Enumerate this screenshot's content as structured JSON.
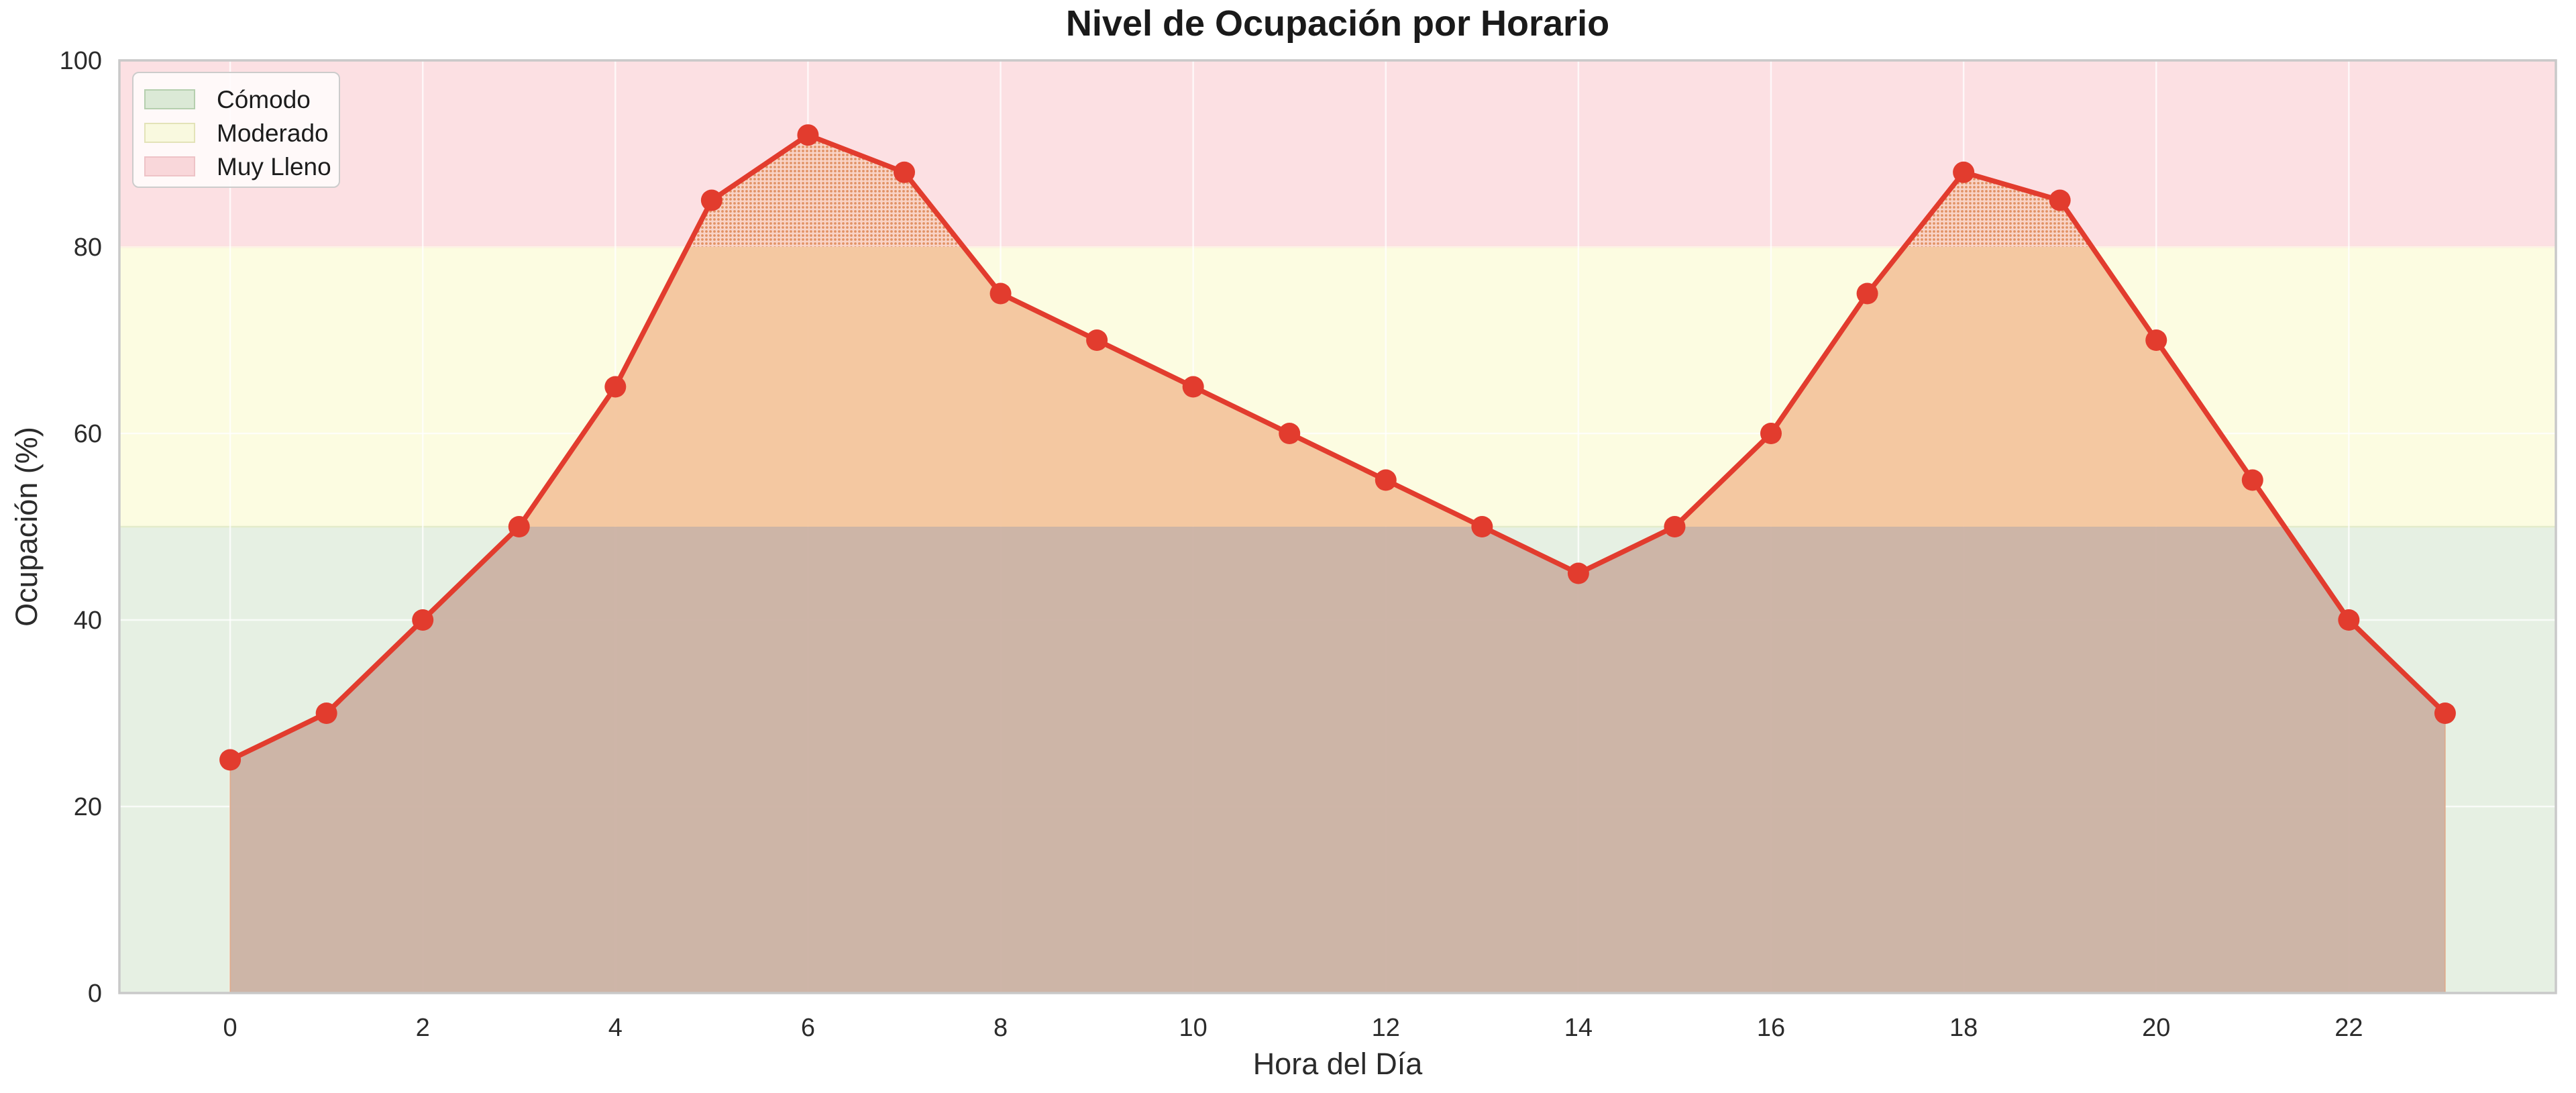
{
  "chart_data": {
    "type": "line",
    "title": "Nivel de Ocupación por Horario",
    "xlabel": "Hora del Día",
    "ylabel": "Ocupación (%)",
    "x": [
      0,
      1,
      2,
      3,
      4,
      5,
      6,
      7,
      8,
      9,
      10,
      11,
      12,
      13,
      14,
      15,
      16,
      17,
      18,
      19,
      20,
      21,
      22,
      23
    ],
    "series": [
      {
        "name": "Ocupación",
        "values": [
          25,
          30,
          40,
          50,
          65,
          85,
          92,
          88,
          75,
          70,
          65,
          60,
          55,
          50,
          45,
          50,
          60,
          75,
          88,
          85,
          70,
          55,
          40,
          30
        ]
      }
    ],
    "xlim": [
      -1.15,
      24.15
    ],
    "ylim": [
      0,
      100
    ],
    "xticks": [
      0,
      2,
      4,
      6,
      8,
      10,
      12,
      14,
      16,
      18,
      20,
      22
    ],
    "yticks": [
      0,
      20,
      40,
      60,
      80,
      100
    ],
    "grid": true,
    "legend_position": "upper-left",
    "bands": [
      {
        "label": "Cómodo",
        "from": 0,
        "to": 50,
        "color": "#e6f0e3",
        "edge_color": "#e3ecca",
        "legend_fill": "#dbe9d6",
        "legend_border": "#b5cfae"
      },
      {
        "label": "Moderado",
        "from": 50,
        "to": 80,
        "color": "#fcfce1",
        "edge_color": "#f5c9a3",
        "legend_fill": "#f9f9df",
        "legend_border": "#e3e3b8"
      },
      {
        "label": "Muy Lleno",
        "from": 80,
        "to": 100,
        "color": "#fce0e3",
        "edge_color": "#f5c9a3",
        "legend_fill": "#f9d7da",
        "legend_border": "#eec3c7"
      }
    ],
    "line_color": "#e23c2e",
    "fill_colors": {
      "below_50": "#cbb1a3",
      "mid_50_80": "#f3c59d",
      "above_80_bg": "#f9d2c4",
      "above_80_dot": "#e08e5e",
      "fill_edge": "#e5a078"
    },
    "axis_border_color": "#c9c9c9",
    "grid_color": "#ffffff",
    "tick_color": "#2b2b2b"
  }
}
